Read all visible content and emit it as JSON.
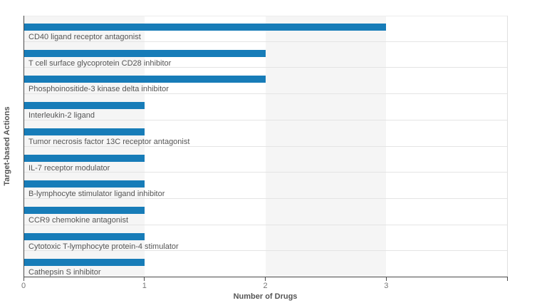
{
  "chart_data": {
    "type": "bar",
    "orientation": "horizontal",
    "title": "",
    "xlabel": "Number of Drugs",
    "ylabel": "Target-based Actions",
    "categories": [
      "CD40 ligand receptor antagonist",
      "T cell surface glycoprotein CD28 inhibitor",
      "Phosphoinositide-3 kinase delta inhibitor",
      "Interleukin-2 ligand",
      "Tumor necrosis factor 13C receptor antagonist",
      "IL-7 receptor modulator",
      "B-lymphocyte stimulator ligand inhibitor",
      "CCR9 chemokine antagonist",
      "Cytotoxic T-lymphocyte protein-4 stimulator",
      "Cathepsin S inhibitor"
    ],
    "values": [
      3,
      2,
      2,
      1,
      1,
      1,
      1,
      1,
      1,
      1
    ],
    "xlim": [
      0,
      4
    ],
    "x_ticks": [
      {
        "value": 0,
        "label": "0"
      },
      {
        "value": 1,
        "label": "1"
      },
      {
        "value": 2,
        "label": "2"
      },
      {
        "value": 3,
        "label": "3"
      },
      {
        "value": 4,
        "label": ""
      }
    ],
    "bar_color": "#177cb8",
    "band_colors": [
      "#f5f5f5",
      "#ffffff"
    ],
    "grid": "alternating-vertical-bands",
    "legend": "none"
  }
}
